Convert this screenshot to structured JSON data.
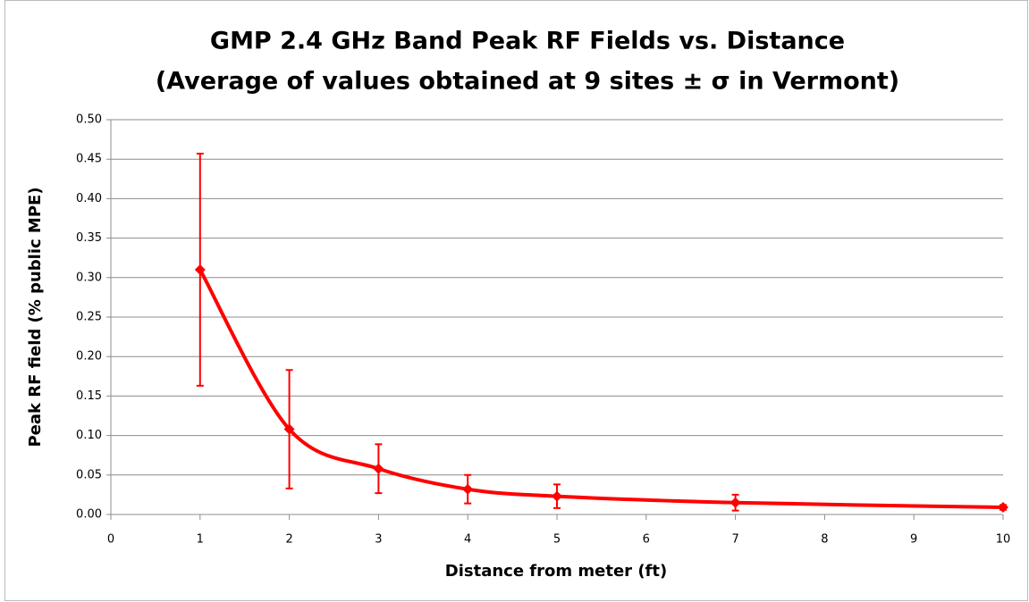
{
  "chart_data": {
    "type": "line",
    "title": "GMP 2.4 GHz Band Peak RF Fields vs. Distance",
    "subtitle": "(Average of values obtained at 9 sites ± σ in Vermont)",
    "x_label": "Distance from meter (ft)",
    "y_label": "Peak RF field (% public MPE)",
    "x": [
      1,
      2,
      3,
      4,
      5,
      7,
      10
    ],
    "series": [
      {
        "name": "Peak RF field",
        "color": "#ff0000",
        "values": [
          0.31,
          0.108,
          0.058,
          0.032,
          0.023,
          0.015,
          0.009
        ],
        "errors": [
          0.147,
          0.075,
          0.031,
          0.018,
          0.015,
          0.01,
          0.003
        ]
      }
    ],
    "xlim": [
      0,
      10
    ],
    "xticks": [
      0,
      1,
      2,
      3,
      4,
      5,
      6,
      7,
      8,
      9,
      10
    ],
    "ylim": [
      0,
      0.5
    ],
    "yticks": [
      {
        "value": 0,
        "label": "0.00"
      },
      0.05,
      {
        "value": 0.1,
        "label": "0.10"
      },
      0.15,
      {
        "value": 0.2,
        "label": "0.20"
      },
      0.25,
      {
        "value": 0.3,
        "label": "0.30"
      },
      0.35,
      {
        "value": 0.4,
        "label": "0.40"
      },
      0.45,
      {
        "value": 0.5,
        "label": "0.50"
      }
    ],
    "grid": true,
    "smooth": true
  }
}
